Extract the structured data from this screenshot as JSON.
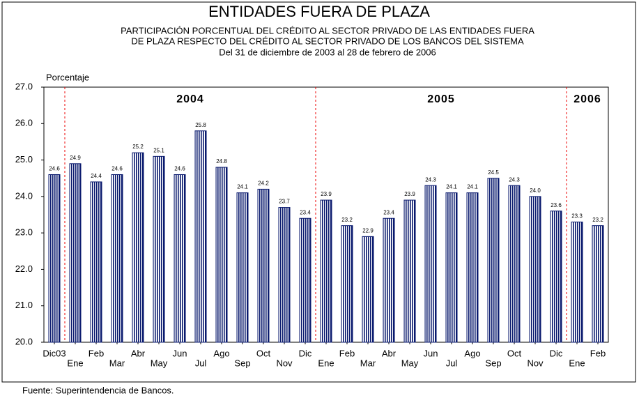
{
  "chart_data": {
    "type": "bar",
    "title": "ENTIDADES FUERA DE PLAZA",
    "subtitle": [
      "PARTICIPACIÓN PORCENTUAL DEL CRÉDITO AL SECTOR PRIVADO DE LAS ENTIDADES FUERA",
      "DE PLAZA RESPECTO DEL CRÉDITO AL SECTOR PRIVADO DE LOS BANCOS DEL SISTEMA",
      "Del 31 de diciembre de 2003 al 28 de febrero de 2006"
    ],
    "y_label": "Porcentaje",
    "source": "Fuente:  Superintendencia de Bancos.",
    "categories": [
      "Dic03",
      "Ene",
      "Feb",
      "Mar",
      "Abr",
      "May",
      "Jun",
      "Jul",
      "Ago",
      "Sep",
      "Oct",
      "Nov",
      "Dic",
      "Ene",
      "Feb",
      "Mar",
      "Abr",
      "May",
      "Jun",
      "Jul",
      "Ago",
      "Sep",
      "Oct",
      "Nov",
      "Dic",
      "Ene",
      "Feb"
    ],
    "values": [
      24.6,
      24.9,
      24.4,
      24.6,
      25.2,
      25.1,
      24.6,
      25.8,
      24.8,
      24.1,
      24.2,
      23.7,
      23.4,
      23.9,
      23.2,
      22.9,
      23.4,
      23.9,
      24.3,
      24.1,
      24.1,
      24.5,
      24.3,
      24.0,
      23.6,
      23.3,
      23.2
    ],
    "value_labels": [
      "24.6",
      "24.9",
      "24.4",
      "24.6",
      "25.2",
      "25.1",
      "24.6",
      "25.8",
      "24.8",
      "24.1",
      "24.2",
      "23.7",
      "23.4",
      "23.9",
      "23.2",
      "22.9",
      "23.4",
      "23.9",
      "24.3",
      "24.1",
      "24.1",
      "24.5",
      "24.3",
      "24.0",
      "23.6",
      "23.3",
      "23.2"
    ],
    "color": "#0a1a6e",
    "ylim": [
      20,
      27
    ],
    "yticks": [
      {
        "value": 20,
        "label": "20.0"
      },
      {
        "value": 21,
        "label": "21.0"
      },
      {
        "value": 22,
        "label": "22.0"
      },
      {
        "value": 23,
        "label": "23.0"
      },
      {
        "value": 24,
        "label": "24.0"
      },
      {
        "value": 25,
        "label": "25.0"
      },
      {
        "value": 26,
        "label": "26.0"
      },
      {
        "value": 27,
        "label": "27.0"
      }
    ],
    "periods": [
      {
        "label": "2004",
        "from": 1,
        "to": 12
      },
      {
        "label": "2005",
        "from": 13,
        "to": 24
      },
      {
        "label": "2006",
        "from": 25,
        "to": 26
      }
    ],
    "grid": false
  }
}
